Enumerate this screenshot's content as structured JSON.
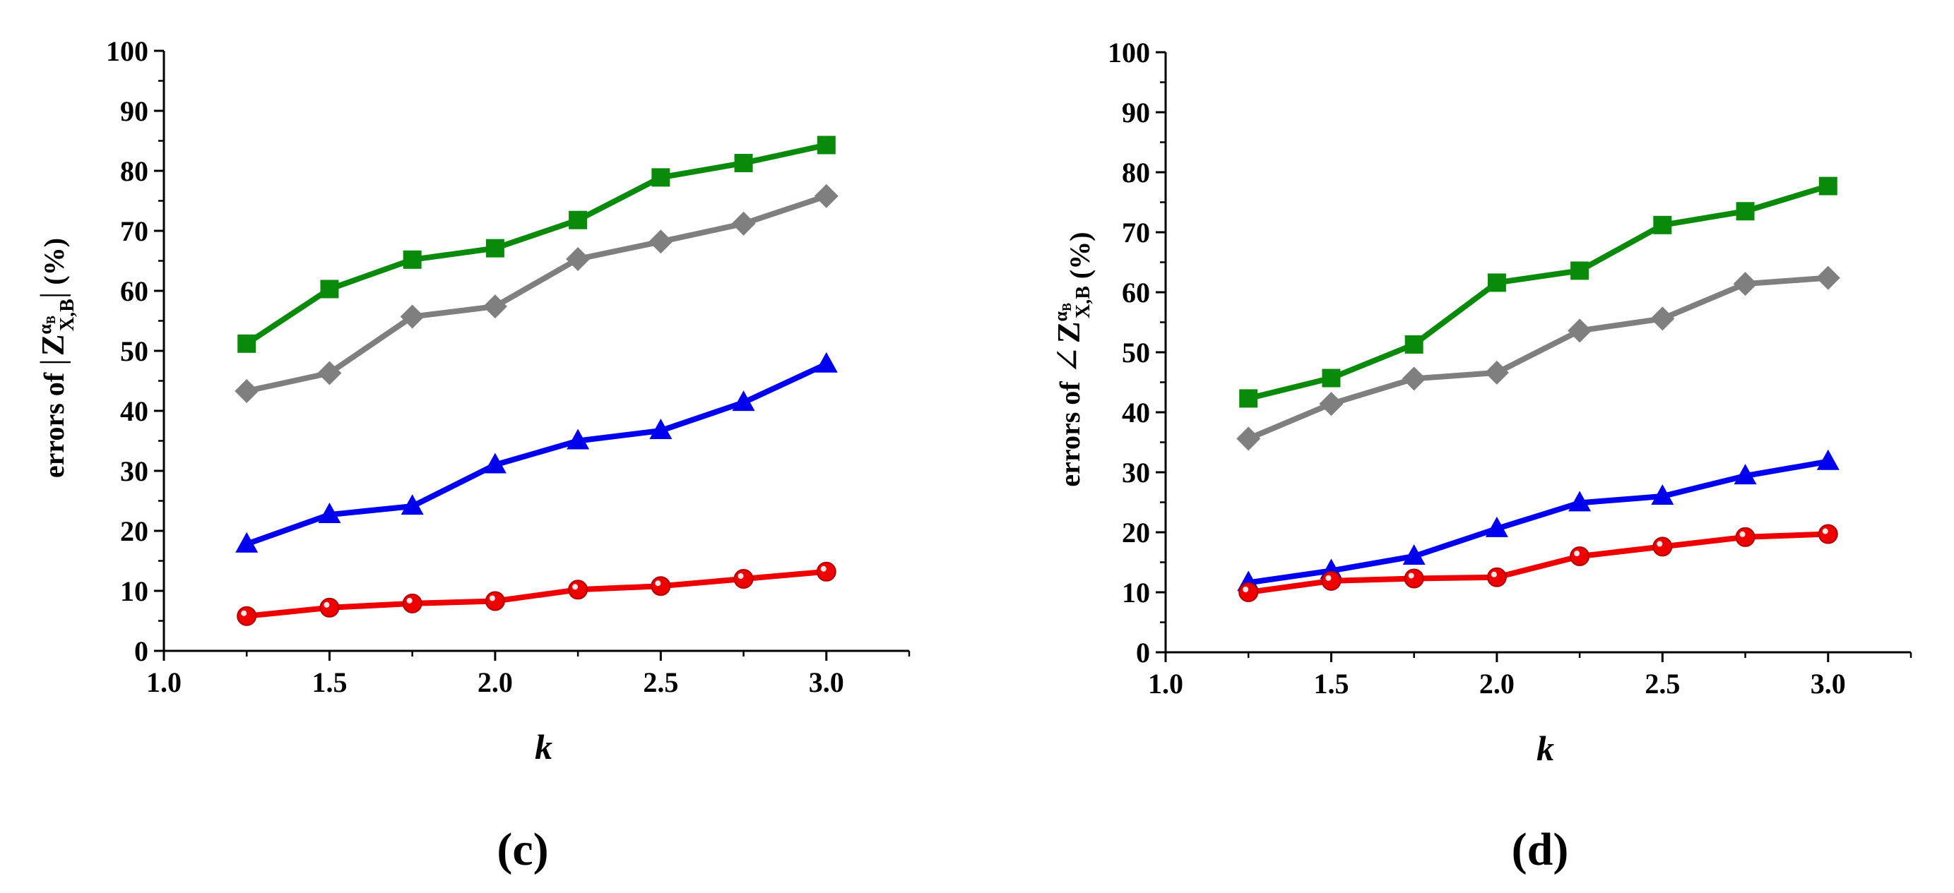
{
  "chart_data": [
    {
      "type": "line",
      "panel": "(c)",
      "xlabel": "k",
      "ylabel": {
        "prefix": "errors of",
        "symbol_left": "|",
        "main": "Z",
        "superscript": "α",
        "superscript_sub": "B",
        "subscript": "X,B",
        "symbol_right": "|",
        "suffix": "(%)"
      },
      "xlim": [
        1.0,
        3.25
      ],
      "ylim": [
        0,
        100
      ],
      "xticks": [
        "1.0",
        "1.5",
        "2.0",
        "2.5",
        "3.0"
      ],
      "yticks": [
        "0",
        "10",
        "20",
        "30",
        "40",
        "50",
        "60",
        "70",
        "80",
        "90",
        "100"
      ],
      "x": [
        1.25,
        1.5,
        1.75,
        2.0,
        2.25,
        2.5,
        2.75,
        3.0
      ],
      "series": [
        {
          "name": "green-square",
          "color": "#0a8a0a",
          "marker": "square",
          "values": [
            51.2,
            60.3,
            65.2,
            67.1,
            71.8,
            78.9,
            81.3,
            84.3
          ]
        },
        {
          "name": "gray-diamond",
          "color": "#7f7f7f",
          "marker": "diamond",
          "values": [
            43.3,
            46.3,
            55.7,
            57.4,
            65.3,
            68.2,
            71.2,
            75.8
          ]
        },
        {
          "name": "blue-triangle",
          "color": "#0000ee",
          "marker": "triangle",
          "values": [
            17.8,
            22.7,
            24.1,
            31.0,
            35.0,
            36.7,
            41.4,
            47.8
          ]
        },
        {
          "name": "red-circle",
          "color": "#ee0000",
          "marker": "circle",
          "values": [
            5.8,
            7.2,
            7.9,
            8.3,
            10.2,
            10.8,
            12.0,
            13.2
          ]
        }
      ]
    },
    {
      "type": "line",
      "panel": "(d)",
      "xlabel": "k",
      "ylabel": {
        "prefix": "errors of",
        "symbol_left": "∠",
        "main": "Z",
        "superscript": "α",
        "superscript_sub": "B",
        "subscript": "X,B",
        "symbol_right": "",
        "suffix": "(%)"
      },
      "xlim": [
        1.0,
        3.25
      ],
      "ylim": [
        0,
        100
      ],
      "xticks": [
        "1.0",
        "1.5",
        "2.0",
        "2.5",
        "3.0"
      ],
      "yticks": [
        "0",
        "10",
        "20",
        "30",
        "40",
        "50",
        "60",
        "70",
        "80",
        "90",
        "100"
      ],
      "x": [
        1.25,
        1.5,
        1.75,
        2.0,
        2.25,
        2.5,
        2.75,
        3.0
      ],
      "series": [
        {
          "name": "green-square",
          "color": "#0a8a0a",
          "marker": "square",
          "values": [
            42.3,
            45.7,
            51.3,
            61.6,
            63.6,
            71.2,
            73.5,
            77.7
          ]
        },
        {
          "name": "gray-diamond",
          "color": "#7f7f7f",
          "marker": "diamond",
          "values": [
            35.6,
            41.4,
            45.6,
            46.6,
            53.6,
            55.6,
            61.4,
            62.4
          ]
        },
        {
          "name": "blue-triangle",
          "color": "#0000ee",
          "marker": "triangle",
          "values": [
            11.6,
            13.6,
            16.0,
            20.6,
            24.9,
            26.0,
            29.4,
            31.8
          ]
        },
        {
          "name": "red-circle",
          "color": "#ee0000",
          "marker": "circle",
          "values": [
            10.0,
            11.9,
            12.3,
            12.5,
            16.0,
            17.6,
            19.2,
            19.7
          ]
        }
      ]
    }
  ]
}
